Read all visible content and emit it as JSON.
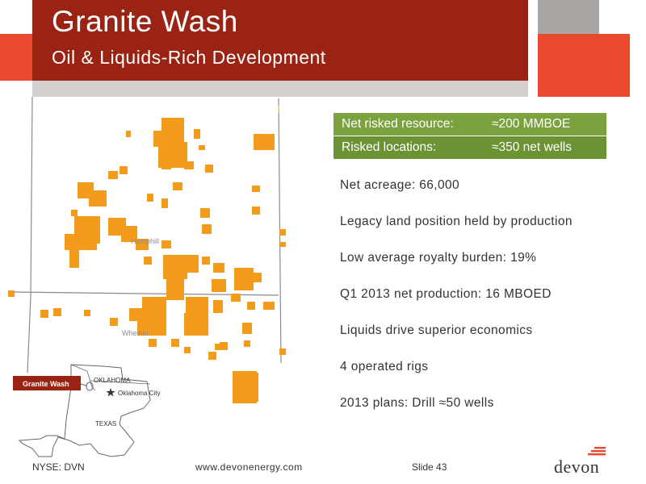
{
  "header": {
    "title": "Granite Wash",
    "subtitle": "Oil & Liquids-Rich Development"
  },
  "colors": {
    "title_band": "#9b2314",
    "accent_red": "#e9492c",
    "accent_grey": "#a9a6a4",
    "metric_green": "#7ba23e",
    "acreage_orange": "#f39c1c"
  },
  "map": {
    "county_labels": {
      "hemphill": "Hemphill",
      "wheeler": "Wheeler"
    },
    "inset": {
      "callout": "Granite Wash",
      "state_ok": "OKLAHOMA",
      "city": "Oklahoma City",
      "state_tx": "TEXAS",
      "star_icon": "star-icon"
    }
  },
  "metrics": [
    {
      "label": "Net risked resource:",
      "value": "≈200 MMBOE"
    },
    {
      "label": "Risked locations:",
      "value": "≈350 net wells"
    }
  ],
  "facts": [
    "Net acreage: 66,000",
    "Legacy land position held by production",
    "Low average royalty burden: 19%",
    "Q1 2013 net production: 16 MBOED",
    "Liquids drive superior economics",
    "4 operated rigs",
    "2013 plans: Drill ≈50 wells"
  ],
  "footer": {
    "ticker": "NYSE: DVN",
    "website": "www.devonenergy.com",
    "slide": "Slide 43",
    "logo": "devon"
  }
}
